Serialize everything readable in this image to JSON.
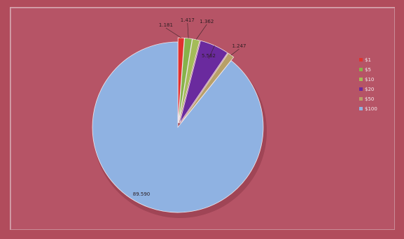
{
  "chart_data": {
    "type": "pie",
    "title": "",
    "legend_position": "right",
    "slices": [
      {
        "name": "$1",
        "value": 1.181,
        "label": "1.181",
        "color": "#e0322f"
      },
      {
        "name": "$5",
        "value": 1.417,
        "label": "1.417",
        "color": "#86b34a"
      },
      {
        "name": "$10",
        "value": 1.362,
        "label": "1.362",
        "color": "#a4bc58"
      },
      {
        "name": "$20",
        "value": 5.562,
        "label": "5.562",
        "color": "#6a2a9e"
      },
      {
        "name": "$50",
        "value": 1.247,
        "label": "1.247",
        "color": "#b8a068"
      },
      {
        "name": "$100",
        "value": 89.59,
        "label": "89.590",
        "color": "#8fb2e2"
      }
    ]
  }
}
